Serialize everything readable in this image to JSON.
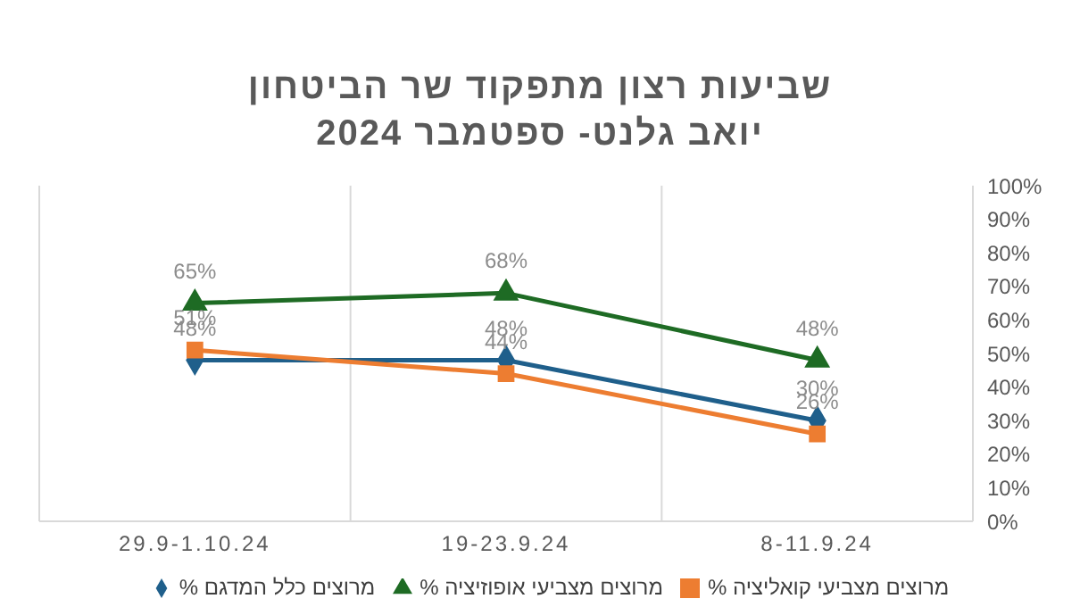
{
  "chart_data": {
    "type": "line",
    "title": "שביעות רצון מתפקוד שר הביטחון יואב גלנט- ספטמבר 2024",
    "categories": [
      "29.9-1.10.24",
      "19-23.9.24",
      "8-11.9.24"
    ],
    "series": [
      {
        "name": "% מרוצים כלל המדגם",
        "color": "#1f5f8b",
        "marker": "diamond",
        "values": [
          48,
          48,
          30
        ],
        "value_labels": [
          "48%",
          "48%",
          "30%"
        ]
      },
      {
        "name": "% מרוצים מצביעי קואליציה",
        "color": "#ed7d31",
        "marker": "square",
        "values": [
          51,
          44,
          26
        ],
        "value_labels": [
          "51%",
          "44%",
          "26%"
        ]
      },
      {
        "name": "% מרוצים מצביעי אופוזיציה",
        "color": "#1e6b24",
        "marker": "triangle",
        "values": [
          65,
          68,
          48
        ],
        "value_labels": [
          "65%",
          "68%",
          "48%"
        ]
      }
    ],
    "ylim": [
      0,
      100
    ],
    "yticks": [
      {
        "value": 0,
        "label": "0%"
      },
      {
        "value": 10,
        "label": "10%"
      },
      {
        "value": 20,
        "label": "20%"
      },
      {
        "value": 30,
        "label": "30%"
      },
      {
        "value": 40,
        "label": "40%"
      },
      {
        "value": 50,
        "label": "50%"
      },
      {
        "value": 60,
        "label": "60%"
      },
      {
        "value": 70,
        "label": "70%"
      },
      {
        "value": 80,
        "label": "80%"
      },
      {
        "value": 90,
        "label": "90%"
      },
      {
        "value": 100,
        "label": "100%"
      }
    ],
    "grid": "x",
    "legend": "bottom"
  }
}
